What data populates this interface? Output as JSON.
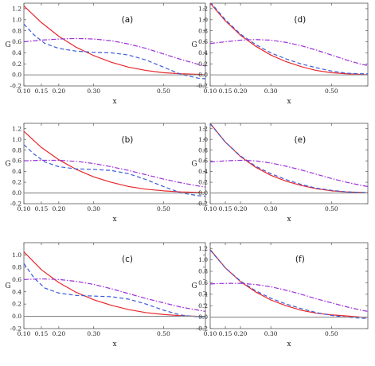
{
  "chart_data": [
    {
      "type": "line",
      "panel_label": "(a)",
      "xlabel": "x",
      "ylabel": "G",
      "xlim": [
        0.1,
        0.62
      ],
      "ylim": [
        -0.2,
        1.3
      ],
      "xticks": [
        0.1,
        0.15,
        0.2,
        0.3,
        0.5
      ],
      "xtick_labels": [
        "0.10",
        "0.15",
        "0.20",
        "0.30",
        "0.50"
      ],
      "yticks": [
        -0.2,
        0.0,
        0.2,
        0.4,
        0.6,
        0.8,
        1.0,
        1.2
      ],
      "ytick_labels": [
        "-0.2",
        "0.0",
        "0.2",
        "0.4",
        "0.6",
        "0.8",
        "1.0",
        "1.2"
      ],
      "series": [
        {
          "style": "solid",
          "color": "#e8262b",
          "x": [
            0.1,
            0.15,
            0.2,
            0.25,
            0.3,
            0.35,
            0.4,
            0.45,
            0.5,
            0.55,
            0.6,
            0.62
          ],
          "y": [
            1.25,
            0.95,
            0.7,
            0.5,
            0.35,
            0.23,
            0.14,
            0.08,
            0.04,
            0.02,
            0.01,
            0.0
          ]
        },
        {
          "style": "dashed",
          "color": "#3b5bdb",
          "x": [
            0.1,
            0.13,
            0.16,
            0.2,
            0.25,
            0.3,
            0.35,
            0.4,
            0.45,
            0.5,
            0.55,
            0.6,
            0.62
          ],
          "y": [
            0.92,
            0.72,
            0.57,
            0.48,
            0.43,
            0.41,
            0.4,
            0.36,
            0.27,
            0.14,
            0.01,
            -0.06,
            -0.07
          ]
        },
        {
          "style": "dashdot",
          "color": "#9b30d9",
          "x": [
            0.1,
            0.15,
            0.2,
            0.25,
            0.3,
            0.35,
            0.4,
            0.45,
            0.5,
            0.55,
            0.6,
            0.62
          ],
          "y": [
            0.6,
            0.63,
            0.65,
            0.66,
            0.65,
            0.62,
            0.56,
            0.48,
            0.38,
            0.28,
            0.19,
            0.16
          ]
        },
        {
          "style": "solid",
          "color": "#888888",
          "x": [
            0.1,
            0.62
          ],
          "y": [
            0.0,
            0.0
          ]
        }
      ]
    },
    {
      "type": "line",
      "panel_label": "(d)",
      "xlabel": "x",
      "ylabel": "G",
      "xlim": [
        0.1,
        0.62
      ],
      "ylim": [
        -0.2,
        1.3
      ],
      "xticks": [
        0.1,
        0.15,
        0.2,
        0.3,
        0.5
      ],
      "xtick_labels": [
        "0.10",
        "0.15",
        "0.20",
        "0.30",
        "0.50"
      ],
      "yticks": [
        -0.2,
        0.0,
        0.2,
        0.4,
        0.6,
        0.8,
        1.0,
        1.2
      ],
      "ytick_labels": [
        "-0.2",
        "0.0",
        "0.2",
        "0.4",
        "0.6",
        "0.8",
        "1.0",
        "1.2"
      ],
      "series": [
        {
          "style": "solid",
          "color": "#e8262b",
          "x": [
            0.1,
            0.15,
            0.2,
            0.25,
            0.3,
            0.35,
            0.4,
            0.45,
            0.5,
            0.55,
            0.6,
            0.62
          ],
          "y": [
            1.3,
            0.98,
            0.72,
            0.52,
            0.36,
            0.24,
            0.15,
            0.08,
            0.04,
            0.02,
            0.01,
            0.0
          ]
        },
        {
          "style": "dashed",
          "color": "#3b5bdb",
          "x": [
            0.1,
            0.15,
            0.2,
            0.25,
            0.3,
            0.35,
            0.4,
            0.45,
            0.5,
            0.55,
            0.6,
            0.62
          ],
          "y": [
            1.32,
            1.0,
            0.74,
            0.55,
            0.4,
            0.29,
            0.2,
            0.13,
            0.07,
            0.03,
            0.02,
            0.02
          ]
        },
        {
          "style": "dashdot",
          "color": "#9b30d9",
          "x": [
            0.1,
            0.15,
            0.2,
            0.25,
            0.3,
            0.35,
            0.4,
            0.45,
            0.5,
            0.55,
            0.6,
            0.62
          ],
          "y": [
            0.57,
            0.6,
            0.63,
            0.64,
            0.63,
            0.59,
            0.53,
            0.45,
            0.36,
            0.27,
            0.19,
            0.17
          ]
        },
        {
          "style": "solid",
          "color": "#888888",
          "x": [
            0.1,
            0.62
          ],
          "y": [
            0.0,
            0.0
          ]
        }
      ]
    },
    {
      "type": "line",
      "panel_label": "(b)",
      "xlabel": "x",
      "ylabel": "G",
      "xlim": [
        0.1,
        0.62
      ],
      "ylim": [
        -0.2,
        1.3
      ],
      "xticks": [
        0.1,
        0.15,
        0.2,
        0.3,
        0.5
      ],
      "xtick_labels": [
        "0.10",
        "0.15",
        "0.20",
        "0.30",
        "0.50"
      ],
      "yticks": [
        -0.2,
        0.0,
        0.2,
        0.4,
        0.6,
        0.8,
        1.0,
        1.2
      ],
      "ytick_labels": [
        "-0.2",
        "0.0",
        "0.2",
        "0.4",
        "0.6",
        "0.8",
        "1.0",
        "1.2"
      ],
      "series": [
        {
          "style": "solid",
          "color": "#e8262b",
          "x": [
            0.1,
            0.15,
            0.2,
            0.25,
            0.3,
            0.35,
            0.4,
            0.45,
            0.5,
            0.55,
            0.6,
            0.62
          ],
          "y": [
            1.15,
            0.85,
            0.62,
            0.44,
            0.3,
            0.2,
            0.12,
            0.07,
            0.04,
            0.02,
            0.01,
            0.0
          ]
        },
        {
          "style": "dashed",
          "color": "#3b5bdb",
          "x": [
            0.1,
            0.13,
            0.16,
            0.2,
            0.25,
            0.3,
            0.35,
            0.4,
            0.45,
            0.5,
            0.55,
            0.6,
            0.62
          ],
          "y": [
            0.9,
            0.72,
            0.58,
            0.49,
            0.45,
            0.44,
            0.42,
            0.36,
            0.25,
            0.12,
            0.0,
            -0.05,
            -0.06
          ]
        },
        {
          "style": "dashdot",
          "color": "#9b30d9",
          "x": [
            0.1,
            0.15,
            0.2,
            0.25,
            0.3,
            0.35,
            0.4,
            0.45,
            0.5,
            0.55,
            0.6,
            0.62
          ],
          "y": [
            0.6,
            0.61,
            0.61,
            0.59,
            0.55,
            0.49,
            0.42,
            0.34,
            0.26,
            0.19,
            0.13,
            0.11
          ]
        },
        {
          "style": "solid",
          "color": "#888888",
          "x": [
            0.1,
            0.62
          ],
          "y": [
            0.0,
            0.0
          ]
        }
      ]
    },
    {
      "type": "line",
      "panel_label": "(e)",
      "xlabel": "x",
      "ylabel": "G",
      "xlim": [
        0.1,
        0.62
      ],
      "ylim": [
        -0.2,
        1.3
      ],
      "xticks": [
        0.1,
        0.15,
        0.2,
        0.3,
        0.5
      ],
      "xtick_labels": [
        "0.10",
        "0.15",
        "0.20",
        "0.30",
        "0.50"
      ],
      "yticks": [
        -0.2,
        0.0,
        0.2,
        0.4,
        0.6,
        0.8,
        1.0,
        1.2
      ],
      "ytick_labels": [
        "-0.2",
        "0.0",
        "0.2",
        "0.4",
        "0.6",
        "0.8",
        "1.0",
        "1.2"
      ],
      "series": [
        {
          "style": "solid",
          "color": "#e8262b",
          "x": [
            0.1,
            0.15,
            0.2,
            0.25,
            0.3,
            0.35,
            0.4,
            0.45,
            0.5,
            0.55,
            0.6,
            0.62
          ],
          "y": [
            1.3,
            0.95,
            0.68,
            0.48,
            0.33,
            0.22,
            0.14,
            0.08,
            0.04,
            0.02,
            0.01,
            0.0
          ]
        },
        {
          "style": "dashed",
          "color": "#3b5bdb",
          "x": [
            0.1,
            0.15,
            0.2,
            0.25,
            0.3,
            0.35,
            0.4,
            0.45,
            0.5,
            0.55,
            0.6,
            0.62
          ],
          "y": [
            1.29,
            0.95,
            0.69,
            0.5,
            0.36,
            0.25,
            0.16,
            0.09,
            0.05,
            0.02,
            0.01,
            0.01
          ]
        },
        {
          "style": "dashdot",
          "color": "#9b30d9",
          "x": [
            0.1,
            0.15,
            0.2,
            0.25,
            0.3,
            0.35,
            0.4,
            0.45,
            0.5,
            0.55,
            0.6,
            0.62
          ],
          "y": [
            0.58,
            0.6,
            0.61,
            0.6,
            0.56,
            0.5,
            0.43,
            0.35,
            0.27,
            0.2,
            0.14,
            0.12
          ]
        },
        {
          "style": "solid",
          "color": "#888888",
          "x": [
            0.1,
            0.62
          ],
          "y": [
            0.0,
            0.0
          ]
        }
      ]
    },
    {
      "type": "line",
      "panel_label": "(c)",
      "xlabel": "x",
      "ylabel": "G",
      "xlim": [
        0.1,
        0.62
      ],
      "ylim": [
        -0.2,
        1.2
      ],
      "xticks": [
        0.1,
        0.15,
        0.2,
        0.3,
        0.5
      ],
      "xtick_labels": [
        "0.10",
        "0.15",
        "0.20",
        "0.30",
        "0.50"
      ],
      "yticks": [
        -0.2,
        0.0,
        0.2,
        0.4,
        0.6,
        0.8,
        1.0
      ],
      "ytick_labels": [
        "-0.2",
        "0.0",
        "0.2",
        "0.4",
        "0.6",
        "0.8",
        "1.0"
      ],
      "series": [
        {
          "style": "solid",
          "color": "#e8262b",
          "x": [
            0.1,
            0.15,
            0.2,
            0.25,
            0.3,
            0.35,
            0.4,
            0.45,
            0.5,
            0.55,
            0.6,
            0.62
          ],
          "y": [
            1.05,
            0.76,
            0.55,
            0.39,
            0.27,
            0.18,
            0.11,
            0.06,
            0.03,
            0.01,
            0.0,
            0.0
          ]
        },
        {
          "style": "dashed",
          "color": "#3b5bdb",
          "x": [
            0.1,
            0.13,
            0.16,
            0.2,
            0.25,
            0.3,
            0.35,
            0.4,
            0.45,
            0.5,
            0.55,
            0.6,
            0.62
          ],
          "y": [
            0.86,
            0.62,
            0.46,
            0.38,
            0.34,
            0.33,
            0.32,
            0.28,
            0.2,
            0.1,
            0.02,
            -0.01,
            -0.01
          ]
        },
        {
          "style": "dashdot",
          "color": "#9b30d9",
          "x": [
            0.1,
            0.15,
            0.2,
            0.25,
            0.3,
            0.35,
            0.4,
            0.45,
            0.5,
            0.55,
            0.6,
            0.62
          ],
          "y": [
            0.6,
            0.61,
            0.6,
            0.57,
            0.52,
            0.45,
            0.37,
            0.29,
            0.22,
            0.15,
            0.1,
            0.08
          ]
        },
        {
          "style": "solid",
          "color": "#888888",
          "x": [
            0.1,
            0.62
          ],
          "y": [
            0.0,
            0.0
          ]
        }
      ]
    },
    {
      "type": "line",
      "panel_label": "(f)",
      "xlabel": "x",
      "ylabel": "G",
      "xlim": [
        0.1,
        0.62
      ],
      "ylim": [
        -0.2,
        1.3
      ],
      "xticks": [
        0.1,
        0.15,
        0.2,
        0.3,
        0.5
      ],
      "xtick_labels": [
        "0.10",
        "0.15",
        "0.20",
        "0.30",
        "0.50"
      ],
      "yticks": [
        -0.2,
        0.0,
        0.2,
        0.4,
        0.6,
        0.8,
        1.0,
        1.2
      ],
      "ytick_labels": [
        "-0.2",
        "0.0",
        "0.2",
        "0.4",
        "0.6",
        "0.8",
        "1.0",
        "1.2"
      ],
      "series": [
        {
          "style": "solid",
          "color": "#e8262b",
          "x": [
            0.1,
            0.15,
            0.2,
            0.25,
            0.3,
            0.35,
            0.4,
            0.45,
            0.5,
            0.55,
            0.6,
            0.62
          ],
          "y": [
            1.18,
            0.86,
            0.62,
            0.44,
            0.3,
            0.2,
            0.12,
            0.07,
            0.04,
            0.02,
            0.0,
            0.0
          ]
        },
        {
          "style": "dashed",
          "color": "#3b5bdb",
          "x": [
            0.1,
            0.15,
            0.2,
            0.25,
            0.3,
            0.35,
            0.4,
            0.45,
            0.5,
            0.55,
            0.6,
            0.62
          ],
          "y": [
            1.17,
            0.86,
            0.63,
            0.46,
            0.33,
            0.23,
            0.15,
            0.08,
            0.03,
            0.0,
            -0.02,
            -0.02
          ]
        },
        {
          "style": "dashdot",
          "color": "#9b30d9",
          "x": [
            0.1,
            0.15,
            0.2,
            0.25,
            0.3,
            0.35,
            0.4,
            0.45,
            0.5,
            0.55,
            0.6,
            0.62
          ],
          "y": [
            0.58,
            0.59,
            0.59,
            0.57,
            0.53,
            0.47,
            0.4,
            0.32,
            0.25,
            0.18,
            0.12,
            0.1
          ]
        },
        {
          "style": "solid",
          "color": "#888888",
          "x": [
            0.1,
            0.62
          ],
          "y": [
            0.0,
            0.0
          ]
        }
      ]
    }
  ]
}
